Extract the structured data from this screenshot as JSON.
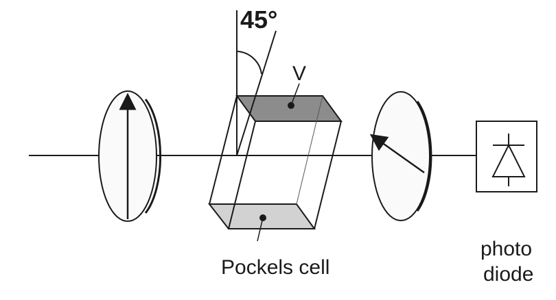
{
  "labels": {
    "angle": "45°",
    "voltage": "V",
    "pockels_cell": "Pockels cell",
    "photodiode_line1": "photo",
    "photodiode_line2": "diode"
  },
  "colors": {
    "line": "#1a1a1a",
    "top_face": "#8c8c8c",
    "bottom_face": "#d2d2d2",
    "polarizer_fill": "#fafafa"
  }
}
